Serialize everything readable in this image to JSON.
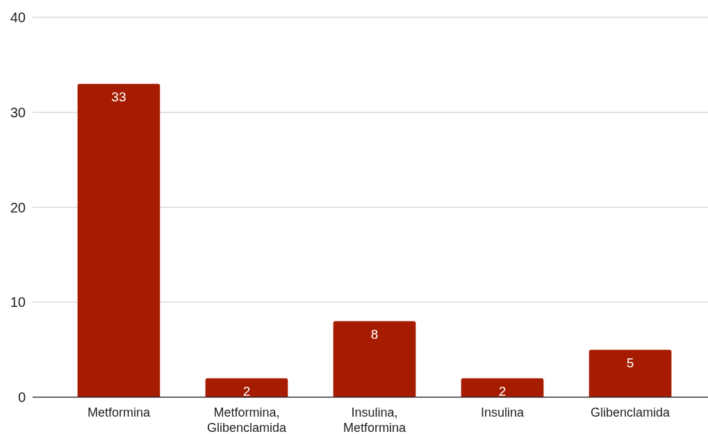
{
  "chart_data": {
    "type": "bar",
    "categories": [
      "Metformina",
      "Metformina, Glibenclamida",
      "Insulina, Metformina",
      "Insulina",
      "Glibenclamida"
    ],
    "values": [
      33,
      2,
      8,
      2,
      5
    ],
    "color": "#a61c00",
    "ylim": [
      0,
      40
    ],
    "yticks": [
      0,
      10,
      20,
      30,
      40
    ],
    "grid": "y",
    "data_labels": true
  }
}
